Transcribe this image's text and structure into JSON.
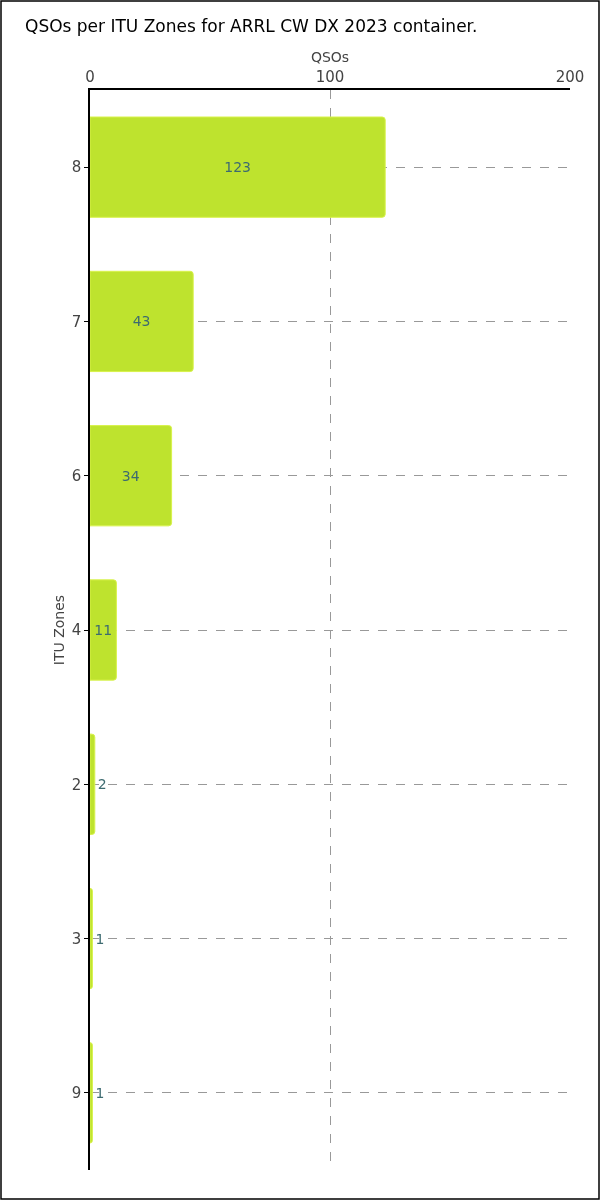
{
  "chart_data": {
    "type": "bar",
    "title": "QSOs per ITU Zones for ARRL CW DX 2023 container.",
    "xlabel": "QSOs",
    "ylabel": "ITU Zones",
    "orientation": "horizontal",
    "categories": [
      "8",
      "7",
      "6",
      "4",
      "2",
      "3",
      "9"
    ],
    "values": [
      123,
      43,
      34,
      11,
      2,
      1,
      1
    ],
    "color": "#bee32e",
    "xlim": [
      0,
      200
    ],
    "xticks": [
      0,
      100,
      200
    ],
    "grid": true,
    "data_labels": true
  }
}
